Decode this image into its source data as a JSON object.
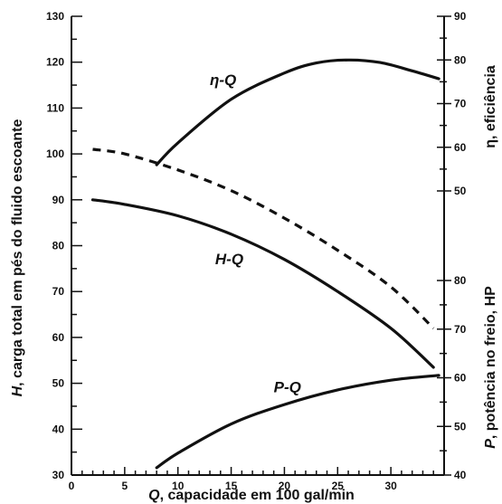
{
  "chart_data": {
    "type": "line",
    "x": {
      "label_var": "Q",
      "label_text": ", capacidade em 100 gal/min",
      "ticks": [
        "0",
        "5",
        "10",
        "15",
        "20",
        "25",
        "30"
      ],
      "range": [
        0,
        35
      ]
    },
    "y_left": {
      "label_var": "H",
      "label_text": ", carga total em pés do fluido escoante",
      "ticks": [
        "30",
        "40",
        "50",
        "60",
        "70",
        "80",
        "90",
        "100",
        "110",
        "120",
        "130"
      ],
      "range": [
        30,
        130
      ]
    },
    "y_right_top": {
      "label_var": "η",
      "label_text": ", eficiência",
      "ticks": [
        "50",
        "60",
        "70",
        "80",
        "90"
      ],
      "range": [
        50,
        90
      ]
    },
    "y_right_bottom": {
      "label_var": "P",
      "label_text": ", potência no freio, HP",
      "ticks": [
        "40",
        "50",
        "60",
        "70",
        "80"
      ],
      "range": [
        40,
        80
      ]
    },
    "series": [
      {
        "name": "H-Q",
        "axis": "left",
        "style": "solid",
        "points": [
          [
            2,
            90
          ],
          [
            5,
            89
          ],
          [
            10,
            86.5
          ],
          [
            15,
            82.5
          ],
          [
            20,
            77
          ],
          [
            25,
            70
          ],
          [
            30,
            62
          ],
          [
            34,
            53.5
          ]
        ]
      },
      {
        "name": "",
        "axis": "left",
        "style": "dashed",
        "points": [
          [
            2,
            101
          ],
          [
            5,
            100
          ],
          [
            10,
            96.5
          ],
          [
            15,
            92
          ],
          [
            20,
            86
          ],
          [
            25,
            79
          ],
          [
            30,
            71
          ],
          [
            34,
            62
          ]
        ]
      },
      {
        "name": "η-Q",
        "axis": "right_top",
        "style": "solid",
        "points": [
          [
            8,
            56
          ],
          [
            10,
            61
          ],
          [
            15,
            71
          ],
          [
            20,
            77
          ],
          [
            23,
            79.3
          ],
          [
            26,
            80
          ],
          [
            29,
            79.4
          ],
          [
            32,
            77.5
          ],
          [
            34.5,
            75.7
          ]
        ]
      },
      {
        "name": "P-Q",
        "axis": "right_bottom",
        "style": "solid",
        "points": [
          [
            8,
            41.5
          ],
          [
            10,
            44.5
          ],
          [
            15,
            50.5
          ],
          [
            20,
            54.5
          ],
          [
            25,
            57.5
          ],
          [
            30,
            59.5
          ],
          [
            34.5,
            60.5
          ]
        ]
      }
    ],
    "labels": [
      {
        "text": "η-Q",
        "x": 13,
        "y": 115
      },
      {
        "text": "H-Q",
        "x": 13.5,
        "y": 76
      },
      {
        "text": "P-Q",
        "x": 19,
        "y": 48
      }
    ]
  }
}
